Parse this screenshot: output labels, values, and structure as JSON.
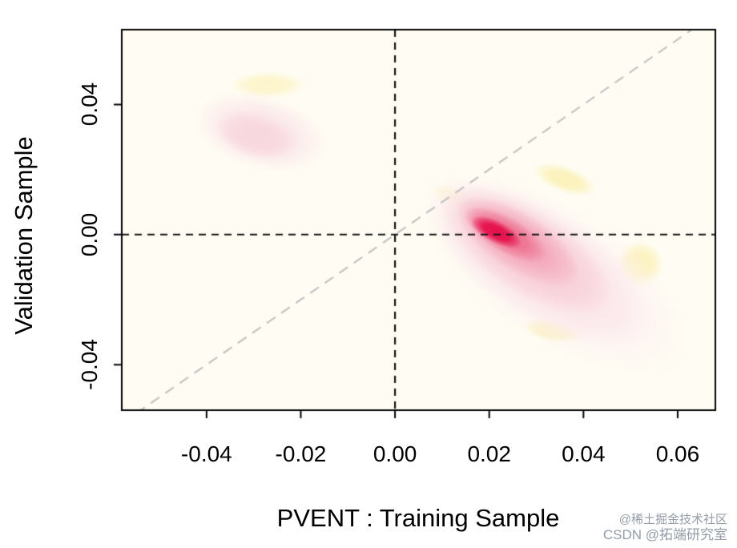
{
  "chart_data": {
    "type": "heatmap",
    "title": "",
    "xlabel": "PVENT : Training Sample",
    "ylabel": "Validation Sample",
    "xlim": [
      -0.058,
      0.068
    ],
    "ylim": [
      -0.054,
      0.063
    ],
    "x_ticks": [
      -0.04,
      -0.02,
      0,
      0.02,
      0.04,
      0.06
    ],
    "x_tick_labels": [
      "-0.04",
      "-0.02",
      "0.00",
      "0.02",
      "0.04",
      "0.06"
    ],
    "y_ticks": [
      -0.04,
      0,
      0.04
    ],
    "y_tick_labels": [
      "-0.04",
      "0.00",
      "0.04"
    ],
    "grid": false,
    "legend": "none",
    "plot_background": "#fffdf3",
    "box_color": "#000000",
    "reference_lines": [
      {
        "name": "identity-diagonal",
        "orientation": "diagonal",
        "slope": 1,
        "intercept": 0,
        "dash": [
          13,
          9
        ],
        "color": "#c4c4c4",
        "width": 2.2
      },
      {
        "name": "zero-horizontal",
        "orientation": "horizontal",
        "at": 0,
        "dash": [
          9,
          7
        ],
        "color": "#141414",
        "width": 2.2
      },
      {
        "name": "zero-vertical",
        "orientation": "vertical",
        "at": 0,
        "dash": [
          9,
          7
        ],
        "color": "#141414",
        "width": 2.2
      }
    ],
    "density_blobs": [
      {
        "name": "yellow-fringe-upperleft",
        "cx": -0.027,
        "cy": 0.046,
        "rx": 0.008,
        "ry": 0.004,
        "tilt_deg": 0,
        "color": "#fcf3c4",
        "alpha": 0.85
      },
      {
        "name": "yellow-fringe-top",
        "cx": 0.036,
        "cy": 0.017,
        "rx": 0.007,
        "ry": 0.004,
        "tilt_deg": 20,
        "color": "#fbf0b2",
        "alpha": 0.85
      },
      {
        "name": "yellow-fringe-right",
        "cx": 0.052,
        "cy": -0.009,
        "rx": 0.005,
        "ry": 0.007,
        "tilt_deg": 0,
        "color": "#fbf0b2",
        "alpha": 0.8
      },
      {
        "name": "yellow-fringe-bottom",
        "cx": 0.0335,
        "cy": -0.0295,
        "rx": 0.0065,
        "ry": 0.0035,
        "tilt_deg": 10,
        "color": "#fbf0b2",
        "alpha": 0.85
      },
      {
        "name": "yellow-fringe-inner-left",
        "cx": 0.012,
        "cy": 0.012,
        "rx": 0.0045,
        "ry": 0.003,
        "tilt_deg": 20,
        "color": "#fdf6cc",
        "alpha": 0.6
      },
      {
        "name": "validation-cluster-outer",
        "cx": -0.0285,
        "cy": 0.0315,
        "rx": 0.0145,
        "ry": 0.0115,
        "tilt_deg": 15,
        "color": "#fbe7eb",
        "alpha": 1
      },
      {
        "name": "validation-cluster-inner",
        "cx": -0.0295,
        "cy": 0.0305,
        "rx": 0.009,
        "ry": 0.007,
        "tilt_deg": 15,
        "color": "#f8d6dd",
        "alpha": 0.9
      },
      {
        "name": "training-cluster-fringe",
        "cx": 0.034,
        "cy": -0.012,
        "rx": 0.033,
        "ry": 0.021,
        "tilt_deg": 33,
        "color": "#fdf0f2",
        "alpha": 1
      },
      {
        "name": "training-cluster-halo",
        "cx": 0.03,
        "cy": -0.008,
        "rx": 0.027,
        "ry": 0.017,
        "tilt_deg": 33,
        "color": "#fbe3e8",
        "alpha": 1
      },
      {
        "name": "training-cluster-outer",
        "cx": 0.028,
        "cy": -0.005,
        "rx": 0.021,
        "ry": 0.013,
        "tilt_deg": 33,
        "color": "#f8ccd6",
        "alpha": 1
      },
      {
        "name": "training-cluster-mid",
        "cx": 0.026,
        "cy": -0.002,
        "rx": 0.015,
        "ry": 0.009,
        "tilt_deg": 32,
        "color": "#f4a9bc",
        "alpha": 1
      },
      {
        "name": "training-cluster-inner",
        "cx": 0.0235,
        "cy": 0.0,
        "rx": 0.01,
        "ry": 0.0055,
        "tilt_deg": 30,
        "color": "#ee7392",
        "alpha": 1
      },
      {
        "name": "training-cluster-core",
        "cx": 0.0215,
        "cy": 0.0008,
        "rx": 0.006,
        "ry": 0.0034,
        "tilt_deg": 27,
        "color": "#e50f4b",
        "alpha": 1
      }
    ]
  },
  "watermark": {
    "line1": "@稀土掘金技术社区",
    "line2": "CSDN @拓端研究室",
    "color": "#939ca6"
  }
}
